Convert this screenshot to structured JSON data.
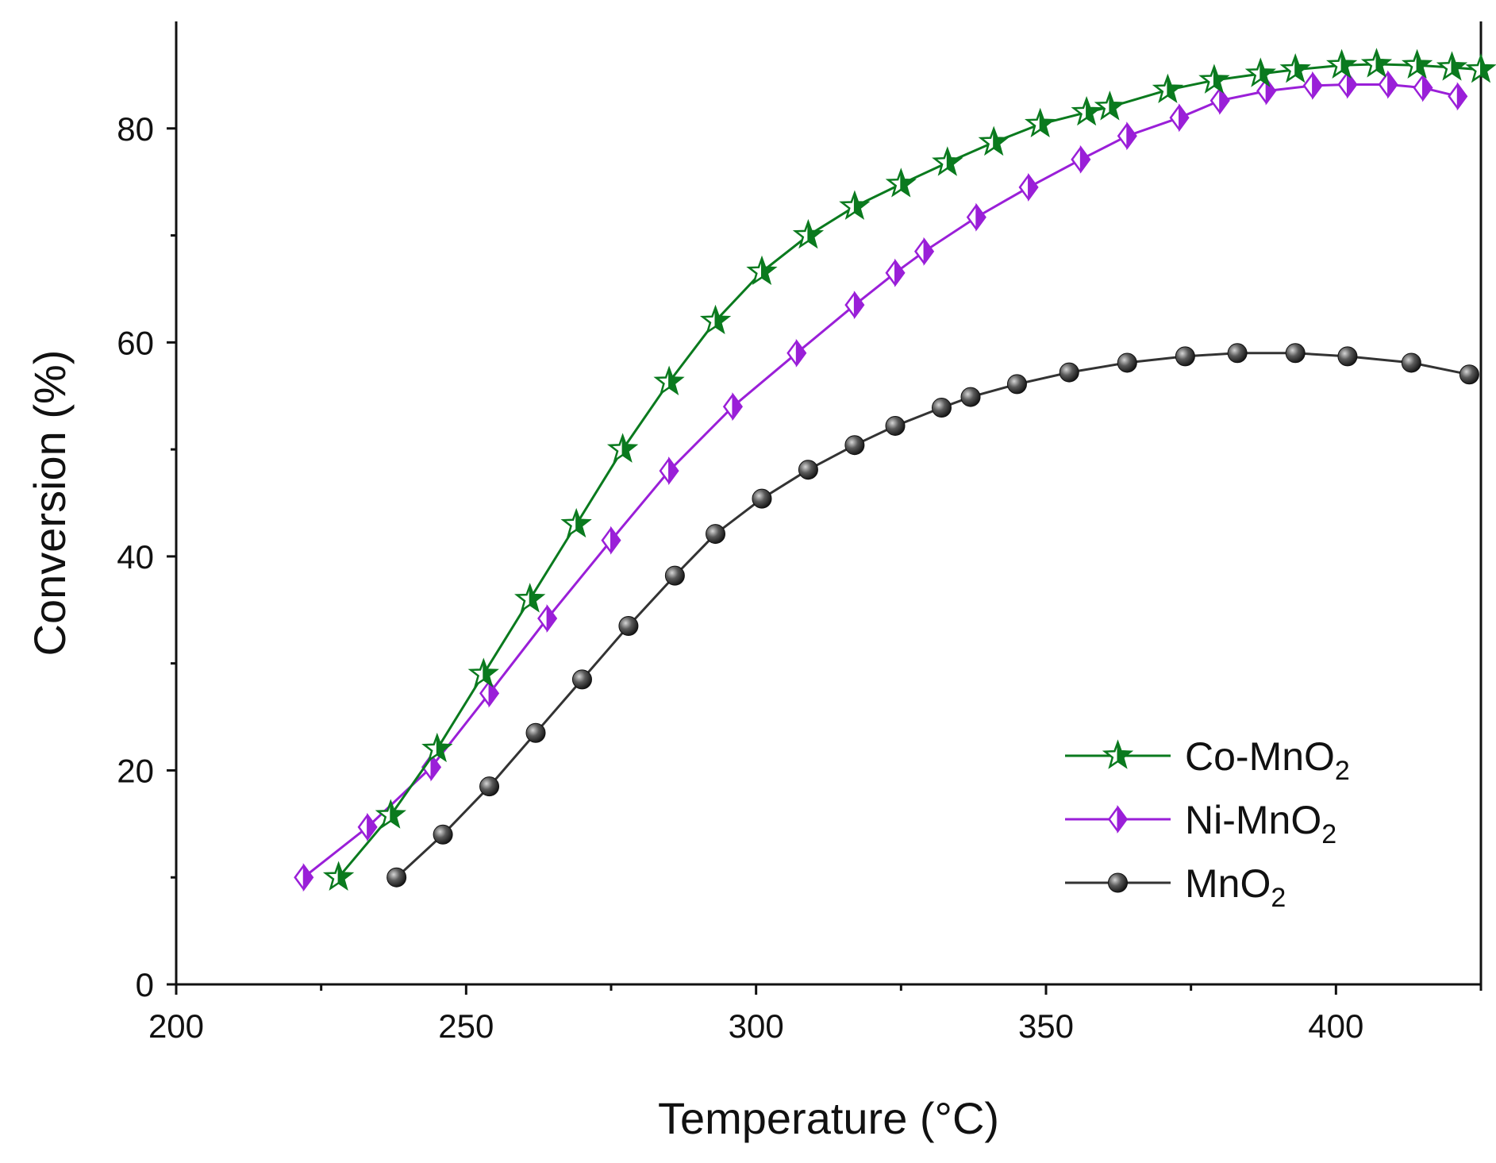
{
  "chart_data": {
    "type": "line",
    "title": "",
    "xlabel": "Temperature (°C)",
    "ylabel": "Conversion (%)",
    "xlim": [
      200,
      425
    ],
    "ylim": [
      0,
      90
    ],
    "x_ticks": [
      200,
      250,
      300,
      350,
      400
    ],
    "y_ticks": [
      0,
      20,
      40,
      60,
      80
    ],
    "grid": false,
    "legend_position": "bottom-right",
    "series": [
      {
        "name": "Co-MnO2",
        "legend_main": "Co-MnO",
        "legend_sub": "2",
        "color": "#0a7a1e",
        "marker": "star",
        "x": [
          228,
          237,
          245,
          253,
          261,
          269,
          277,
          285,
          293,
          301,
          309,
          317,
          325,
          333,
          341,
          349,
          357,
          361,
          371,
          379,
          387,
          393,
          401,
          407,
          414,
          420,
          425
        ],
        "values": [
          10,
          15.8,
          22,
          29,
          36,
          43,
          50,
          56.3,
          62,
          66.6,
          70,
          72.7,
          74.8,
          76.8,
          78.7,
          80.4,
          81.5,
          82,
          83.6,
          84.5,
          85.1,
          85.5,
          85.9,
          86,
          85.9,
          85.7,
          85.5
        ]
      },
      {
        "name": "Ni-MnO2",
        "legend_main": "Ni-MnO",
        "legend_sub": "2",
        "color": "#9a1fd8",
        "marker": "half-diamond",
        "x": [
          222,
          233,
          244,
          254,
          264,
          275,
          285,
          296,
          307,
          317,
          324,
          329,
          338,
          347,
          356,
          364,
          373,
          380,
          388,
          396,
          402,
          409,
          415,
          421
        ],
        "values": [
          10,
          14.7,
          20.3,
          27.2,
          34.2,
          41.5,
          48,
          54,
          59,
          63.5,
          66.5,
          68.5,
          71.7,
          74.5,
          77.1,
          79.3,
          81,
          82.6,
          83.5,
          84,
          84.1,
          84.1,
          83.8,
          83
        ]
      },
      {
        "name": "MnO2",
        "legend_main": "MnO",
        "legend_sub": "2",
        "color": "#333333",
        "marker": "sphere",
        "x": [
          238,
          246,
          254,
          262,
          270,
          278,
          286,
          293,
          301,
          309,
          317,
          324,
          332,
          337,
          345,
          354,
          364,
          374,
          383,
          393,
          402,
          413,
          423
        ],
        "values": [
          10,
          14,
          18.5,
          23.5,
          28.5,
          33.5,
          38.2,
          42.1,
          45.4,
          48.1,
          50.4,
          52.2,
          53.9,
          54.9,
          56.1,
          57.2,
          58.1,
          58.7,
          59,
          59,
          58.7,
          58.1,
          57
        ]
      }
    ]
  }
}
